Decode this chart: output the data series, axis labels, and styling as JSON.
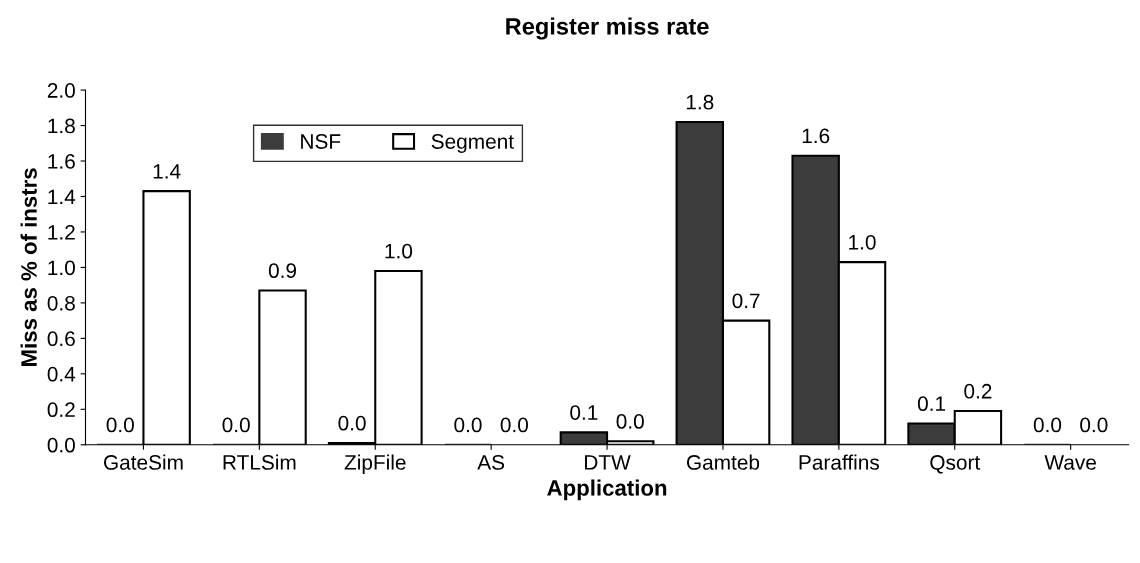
{
  "chart_data": {
    "type": "bar",
    "title": "Register miss rate",
    "xlabel": "Application",
    "ylabel": "Miss as % of instrs",
    "categories": [
      "GateSim",
      "RTLSim",
      "ZipFile",
      "AS",
      "DTW",
      "Gamteb",
      "Paraffins",
      "Qsort",
      "Wave"
    ],
    "series": [
      {
        "name": "NSF",
        "color": "#3c3c3c",
        "values": [
          0,
          0,
          0.01,
          0,
          0.07,
          1.82,
          1.63,
          0.12,
          0
        ],
        "value_labels": [
          "0.0",
          "0.0",
          "0.0",
          "0.0",
          "0.1",
          "1.8",
          "1.6",
          "0.1",
          "0.0"
        ]
      },
      {
        "name": "Segment",
        "color": "#ffffff",
        "values": [
          1.43,
          0.87,
          0.98,
          0,
          0.02,
          0.7,
          1.03,
          0.19,
          0
        ],
        "value_labels": [
          "1.4",
          "0.9",
          "1.0",
          "0.0",
          "0.0",
          "0.7",
          "1.0",
          "0.2",
          "0.0"
        ]
      }
    ],
    "ylim": [
      0,
      2
    ],
    "yticks": [
      {
        "value": 0,
        "label": "0.0"
      },
      {
        "value": 0.2,
        "label": "0.2"
      },
      {
        "value": 0.4,
        "label": "0.4"
      },
      {
        "value": 0.6,
        "label": "0.6"
      },
      {
        "value": 0.8,
        "label": "0.8"
      },
      {
        "value": 1.0,
        "label": "1.0"
      },
      {
        "value": 1.2,
        "label": "1.2"
      },
      {
        "value": 1.4,
        "label": "1.4"
      },
      {
        "value": 1.6,
        "label": "1.6"
      },
      {
        "value": 1.8,
        "label": "1.8"
      },
      {
        "value": 2.0,
        "label": "2.0"
      }
    ],
    "grid": false,
    "legend": "top left"
  }
}
